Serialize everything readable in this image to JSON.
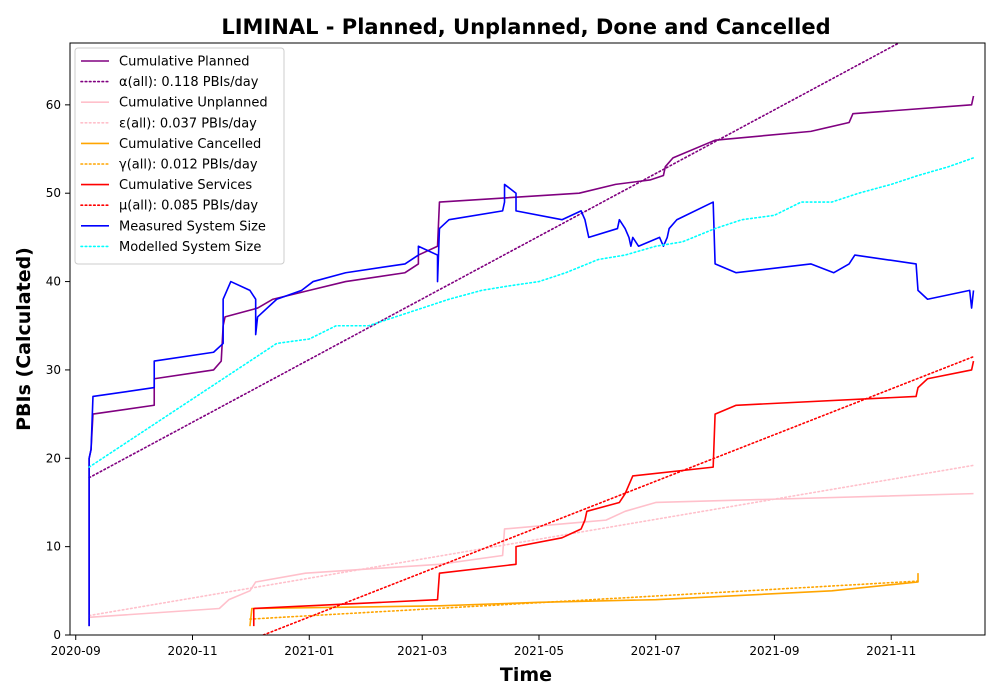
{
  "chart_data": {
    "type": "line",
    "title": "LIMINAL - Planned, Unplanned, Done  and Cancelled",
    "xlabel": "Time",
    "ylabel": "PBIs (Calculated)",
    "xlim": [
      "2020-08-29",
      "2021-12-20"
    ],
    "ylim": [
      0,
      67
    ],
    "x_ticks": [
      "2020-09",
      "2020-11",
      "2021-01",
      "2021-03",
      "2021-05",
      "2021-07",
      "2021-09",
      "2021-11"
    ],
    "y_ticks": [
      0,
      10,
      20,
      30,
      40,
      50,
      60
    ],
    "legend_position": "upper-left",
    "series": [
      {
        "name": "Cumulative Planned",
        "color": "#800080",
        "style": "solid",
        "points": [
          [
            "2020-09-08",
            1
          ],
          [
            "2020-09-08",
            20
          ],
          [
            "2020-09-09",
            21
          ],
          [
            "2020-09-10",
            25
          ],
          [
            "2020-10-12",
            26
          ],
          [
            "2020-10-12",
            29
          ],
          [
            "2020-11-12",
            30
          ],
          [
            "2020-11-16",
            31
          ],
          [
            "2020-11-17",
            35
          ],
          [
            "2020-11-18",
            36
          ],
          [
            "2020-12-05",
            37
          ],
          [
            "2020-12-13",
            38
          ],
          [
            "2021-01-01",
            39
          ],
          [
            "2021-01-20",
            40
          ],
          [
            "2021-02-20",
            41
          ],
          [
            "2021-02-27",
            42
          ],
          [
            "2021-02-27",
            43
          ],
          [
            "2021-03-09",
            44
          ],
          [
            "2021-03-10",
            49
          ],
          [
            "2021-05-22",
            50
          ],
          [
            "2021-06-10",
            51
          ],
          [
            "2021-06-28",
            51.5
          ],
          [
            "2021-07-05",
            52
          ],
          [
            "2021-07-06",
            53
          ],
          [
            "2021-07-10",
            54
          ],
          [
            "2021-08-01",
            56
          ],
          [
            "2021-09-20",
            57
          ],
          [
            "2021-10-10",
            58
          ],
          [
            "2021-10-12",
            59
          ],
          [
            "2021-12-13",
            60
          ],
          [
            "2021-12-14",
            61
          ]
        ]
      },
      {
        "name": "α(all): 0.118 PBIs/day",
        "color": "#800080",
        "style": "dotted",
        "points": [
          [
            "2020-09-08",
            17.8
          ],
          [
            "2021-11-05",
            67
          ]
        ]
      },
      {
        "name": "Cumulative Unplanned",
        "color": "#ffc0cb",
        "style": "solid",
        "points": [
          [
            "2020-09-08",
            2
          ],
          [
            "2020-11-15",
            3
          ],
          [
            "2020-11-20",
            4
          ],
          [
            "2020-12-01",
            5
          ],
          [
            "2020-12-04",
            6
          ],
          [
            "2020-12-30",
            7
          ],
          [
            "2021-03-10",
            8
          ],
          [
            "2021-04-12",
            9
          ],
          [
            "2021-04-13",
            12
          ],
          [
            "2021-05-25",
            12.8
          ],
          [
            "2021-06-05",
            13
          ],
          [
            "2021-06-15",
            14
          ],
          [
            "2021-07-01",
            15
          ],
          [
            "2021-12-14",
            16
          ]
        ]
      },
      {
        "name": "ε(all): 0.037 PBIs/day",
        "color": "#ffc0cb",
        "style": "dotted",
        "points": [
          [
            "2020-09-08",
            2.2
          ],
          [
            "2021-12-14",
            19.2
          ]
        ]
      },
      {
        "name": "Cumulative Cancelled",
        "color": "#ffa500",
        "style": "solid",
        "points": [
          [
            "2020-12-01",
            1
          ],
          [
            "2020-12-02",
            3
          ],
          [
            "2021-03-10",
            3.3
          ],
          [
            "2021-05-01",
            3.7
          ],
          [
            "2021-07-01",
            4
          ],
          [
            "2021-10-01",
            5
          ],
          [
            "2021-11-15",
            6
          ],
          [
            "2021-11-15",
            7
          ]
        ]
      },
      {
        "name": "γ(all): 0.012 PBIs/day",
        "color": "#ffa500",
        "style": "dotted",
        "points": [
          [
            "2020-12-01",
            1.8
          ],
          [
            "2021-11-15",
            6.1
          ]
        ]
      },
      {
        "name": "Cumulative Services",
        "color": "#ff0000",
        "style": "solid",
        "points": [
          [
            "2020-12-03",
            1
          ],
          [
            "2020-12-03",
            3
          ],
          [
            "2021-03-09",
            4
          ],
          [
            "2021-03-10",
            7
          ],
          [
            "2021-04-19",
            8
          ],
          [
            "2021-04-19",
            10
          ],
          [
            "2021-05-13",
            11
          ],
          [
            "2021-05-23",
            12
          ],
          [
            "2021-05-25",
            13
          ],
          [
            "2021-05-26",
            14
          ],
          [
            "2021-06-12",
            15
          ],
          [
            "2021-06-15",
            16
          ],
          [
            "2021-06-17",
            17
          ],
          [
            "2021-06-19",
            18
          ],
          [
            "2021-07-31",
            19
          ],
          [
            "2021-08-01",
            25
          ],
          [
            "2021-08-12",
            26
          ],
          [
            "2021-11-14",
            27
          ],
          [
            "2021-11-15",
            28
          ],
          [
            "2021-11-20",
            29
          ],
          [
            "2021-12-13",
            30
          ],
          [
            "2021-12-14",
            31
          ]
        ]
      },
      {
        "name": "μ(all): 0.085 PBIs/day",
        "color": "#ff0000",
        "style": "dotted",
        "points": [
          [
            "2020-12-08",
            0
          ],
          [
            "2021-12-14",
            31.5
          ]
        ]
      },
      {
        "name": "Measured System Size",
        "color": "#0000ff",
        "style": "solid",
        "points": [
          [
            "2020-09-08",
            1
          ],
          [
            "2020-09-08",
            20
          ],
          [
            "2020-09-09",
            21
          ],
          [
            "2020-09-10",
            27
          ],
          [
            "2020-10-12",
            28
          ],
          [
            "2020-10-12",
            31
          ],
          [
            "2020-11-12",
            32
          ],
          [
            "2020-11-17",
            33
          ],
          [
            "2020-11-17",
            38
          ],
          [
            "2020-11-21",
            40
          ],
          [
            "2020-12-01",
            39
          ],
          [
            "2020-12-04",
            38
          ],
          [
            "2020-12-04",
            34
          ],
          [
            "2020-12-05",
            36
          ],
          [
            "2020-12-15",
            38
          ],
          [
            "2020-12-28",
            39
          ],
          [
            "2021-01-03",
            40
          ],
          [
            "2021-01-20",
            41
          ],
          [
            "2021-02-20",
            42
          ],
          [
            "2021-02-27",
            43
          ],
          [
            "2021-02-27",
            44
          ],
          [
            "2021-03-09",
            43
          ],
          [
            "2021-03-09",
            40
          ],
          [
            "2021-03-10",
            46
          ],
          [
            "2021-03-15",
            47
          ],
          [
            "2021-04-12",
            48
          ],
          [
            "2021-04-13",
            49
          ],
          [
            "2021-04-13",
            51
          ],
          [
            "2021-04-19",
            50
          ],
          [
            "2021-04-19",
            48
          ],
          [
            "2021-05-13",
            47
          ],
          [
            "2021-05-23",
            48
          ],
          [
            "2021-05-25",
            47
          ],
          [
            "2021-05-26",
            46
          ],
          [
            "2021-05-27",
            45
          ],
          [
            "2021-06-11",
            46
          ],
          [
            "2021-06-12",
            47
          ],
          [
            "2021-06-15",
            46
          ],
          [
            "2021-06-17",
            45
          ],
          [
            "2021-06-18",
            44
          ],
          [
            "2021-06-19",
            45
          ],
          [
            "2021-06-22",
            44
          ],
          [
            "2021-07-03",
            45
          ],
          [
            "2021-07-05",
            44
          ],
          [
            "2021-07-07",
            45
          ],
          [
            "2021-07-08",
            46
          ],
          [
            "2021-07-12",
            47
          ],
          [
            "2021-07-31",
            49
          ],
          [
            "2021-08-01",
            42
          ],
          [
            "2021-08-12",
            41
          ],
          [
            "2021-09-20",
            42
          ],
          [
            "2021-10-02",
            41
          ],
          [
            "2021-10-10",
            42
          ],
          [
            "2021-10-13",
            43
          ],
          [
            "2021-11-14",
            42
          ],
          [
            "2021-11-15",
            39
          ],
          [
            "2021-11-20",
            38
          ],
          [
            "2021-12-12",
            39
          ],
          [
            "2021-12-13",
            37
          ],
          [
            "2021-12-14",
            39
          ]
        ]
      },
      {
        "name": "Modelled System Size",
        "color": "#00ffff",
        "style": "dotted",
        "points": [
          [
            "2020-09-08",
            19
          ],
          [
            "2020-09-22",
            21
          ],
          [
            "2020-10-06",
            23
          ],
          [
            "2020-10-20",
            25
          ],
          [
            "2020-11-03",
            27
          ],
          [
            "2020-11-17",
            29
          ],
          [
            "2020-12-01",
            31
          ],
          [
            "2020-12-15",
            33
          ],
          [
            "2021-01-01",
            33.5
          ],
          [
            "2021-01-15",
            35
          ],
          [
            "2021-02-01",
            35
          ],
          [
            "2021-02-15",
            36
          ],
          [
            "2021-03-01",
            37
          ],
          [
            "2021-03-15",
            38
          ],
          [
            "2021-04-01",
            39
          ],
          [
            "2021-04-15",
            39.5
          ],
          [
            "2021-05-01",
            40
          ],
          [
            "2021-05-15",
            41
          ],
          [
            "2021-06-01",
            42.5
          ],
          [
            "2021-06-15",
            43
          ],
          [
            "2021-07-01",
            44
          ],
          [
            "2021-07-15",
            44.5
          ],
          [
            "2021-08-01",
            46
          ],
          [
            "2021-08-15",
            47
          ],
          [
            "2021-09-01",
            47.5
          ],
          [
            "2021-09-15",
            49
          ],
          [
            "2021-10-01",
            49
          ],
          [
            "2021-10-15",
            50
          ],
          [
            "2021-11-01",
            51
          ],
          [
            "2021-11-15",
            52
          ],
          [
            "2021-12-01",
            53
          ],
          [
            "2021-12-14",
            54
          ]
        ]
      }
    ]
  }
}
